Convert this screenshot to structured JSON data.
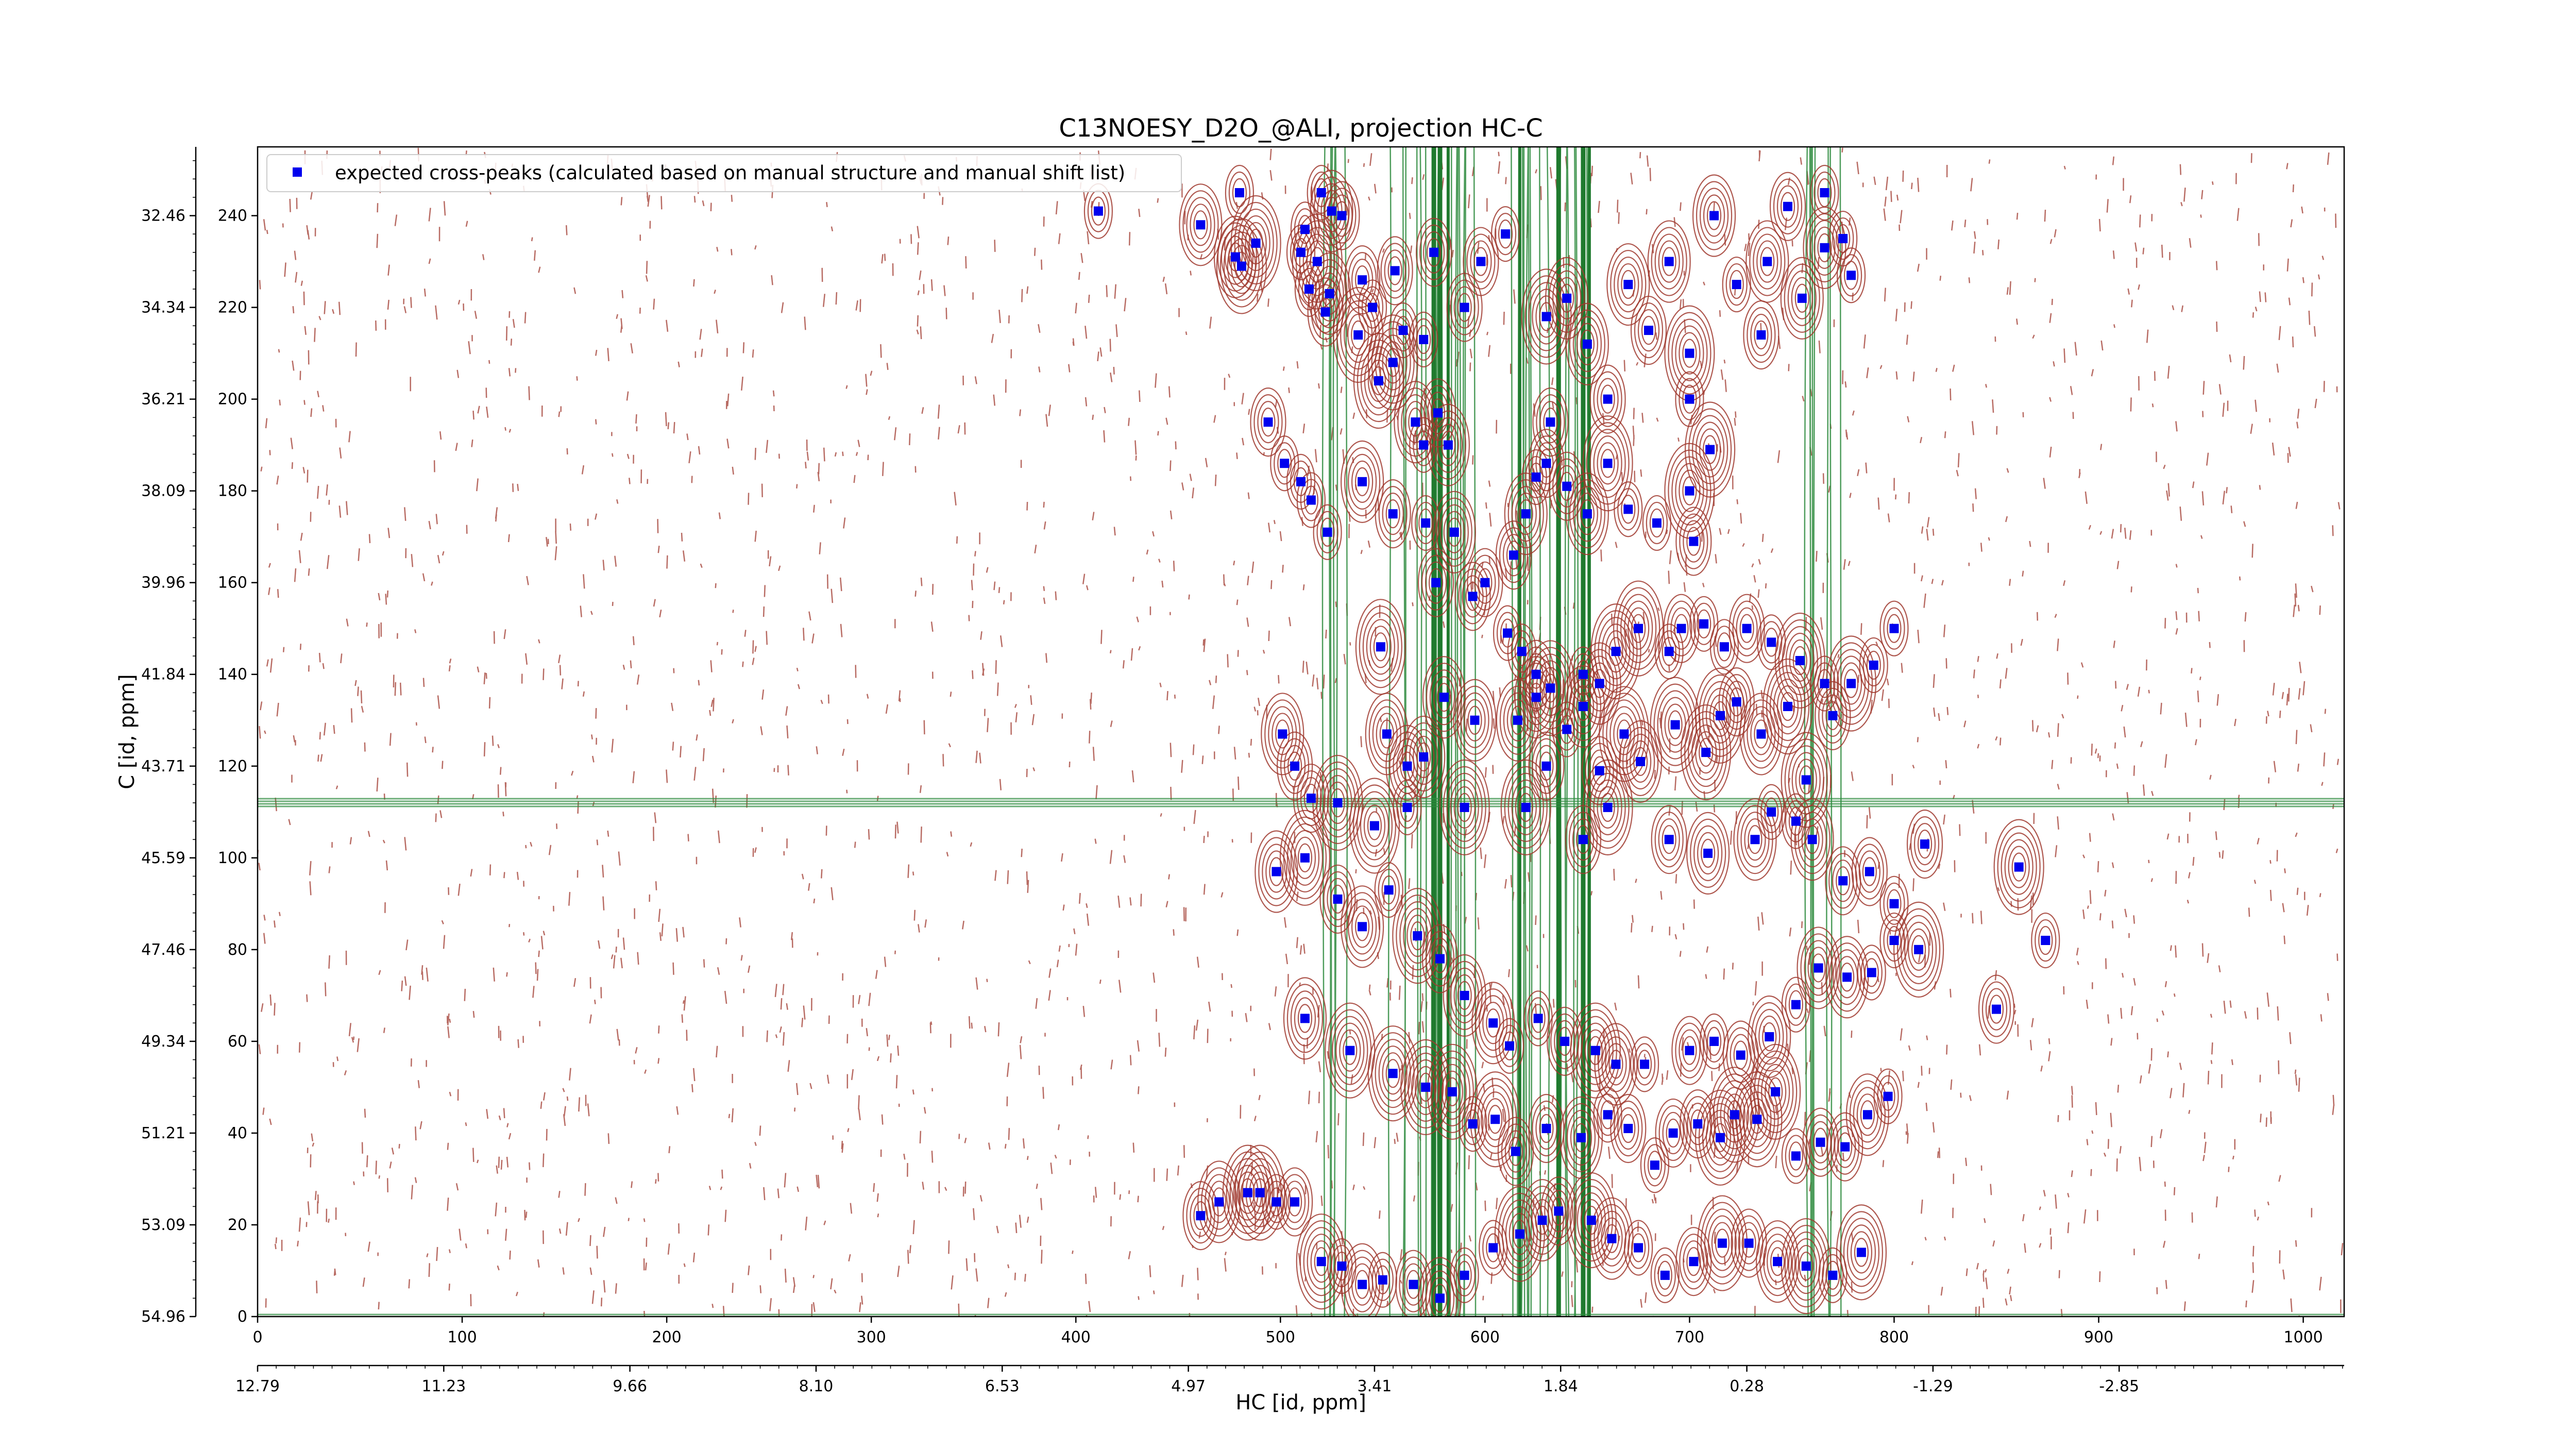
{
  "chart_data": {
    "type": "scatter",
    "title": "C13NOESY_D2O_@ALI, projection HC-C",
    "xlabel": "HC [id, ppm]",
    "ylabel": "C [id, ppm]",
    "xlim": [
      0,
      1020
    ],
    "ylim": [
      0,
      255
    ],
    "x_ticks": [
      0,
      100,
      200,
      300,
      400,
      500,
      600,
      700,
      800,
      900,
      1000
    ],
    "y_ticks": [
      0,
      20,
      40,
      60,
      80,
      100,
      120,
      140,
      160,
      180,
      200,
      220,
      240
    ],
    "x_ppm_ticks": [
      {
        "pos": 0,
        "label": "12.79"
      },
      {
        "pos": 91,
        "label": "11.23"
      },
      {
        "pos": 182,
        "label": "9.66"
      },
      {
        "pos": 273,
        "label": "8.10"
      },
      {
        "pos": 364,
        "label": "6.53"
      },
      {
        "pos": 455,
        "label": "4.97"
      },
      {
        "pos": 546,
        "label": "3.41"
      },
      {
        "pos": 637,
        "label": "1.84"
      },
      {
        "pos": 728,
        "label": "0.28"
      },
      {
        "pos": 819,
        "label": "-1.29"
      },
      {
        "pos": 910,
        "label": "-2.85"
      }
    ],
    "y_ppm_ticks": [
      {
        "pos": 0,
        "label": "54.96"
      },
      {
        "pos": 20,
        "label": "53.09"
      },
      {
        "pos": 40,
        "label": "51.21"
      },
      {
        "pos": 60,
        "label": "49.34"
      },
      {
        "pos": 80,
        "label": "47.46"
      },
      {
        "pos": 100,
        "label": "45.59"
      },
      {
        "pos": 120,
        "label": "43.71"
      },
      {
        "pos": 140,
        "label": "41.84"
      },
      {
        "pos": 160,
        "label": "39.96"
      },
      {
        "pos": 180,
        "label": "38.09"
      },
      {
        "pos": 200,
        "label": "36.21"
      },
      {
        "pos": 220,
        "label": "34.34"
      },
      {
        "pos": 240,
        "label": "32.46"
      }
    ],
    "legend": {
      "position": "top-left",
      "entries": [
        "expected cross-peaks (calculated based on manual structure and manual shift list)"
      ]
    },
    "colors": {
      "positive_contours": "#a0392f",
      "negative_contours": "#2e8b3e",
      "peaks": "#0000ee"
    },
    "series": [
      {
        "name": "expected cross-peaks (calculated based on manual structure and manual shift list)",
        "points": [
          [
            411,
            241
          ],
          [
            461,
            238
          ],
          [
            480,
            245
          ],
          [
            488,
            234
          ],
          [
            478,
            231
          ],
          [
            481,
            229
          ],
          [
            510,
            232
          ],
          [
            518,
            230
          ],
          [
            514,
            224
          ],
          [
            522,
            219
          ],
          [
            540,
            226
          ],
          [
            545,
            220
          ],
          [
            556,
            228
          ],
          [
            560,
            215
          ],
          [
            570,
            213
          ],
          [
            575,
            232
          ],
          [
            590,
            220
          ],
          [
            598,
            230
          ],
          [
            610,
            236
          ],
          [
            630,
            218
          ],
          [
            640,
            222
          ],
          [
            650,
            212
          ],
          [
            660,
            200
          ],
          [
            670,
            225
          ],
          [
            680,
            215
          ],
          [
            690,
            230
          ],
          [
            700,
            210
          ],
          [
            700,
            200
          ],
          [
            712,
            240
          ],
          [
            723,
            225
          ],
          [
            738,
            230
          ],
          [
            748,
            242
          ],
          [
            766,
            245
          ],
          [
            766,
            233
          ],
          [
            775,
            235
          ],
          [
            779,
            227
          ],
          [
            755,
            222
          ],
          [
            735,
            214
          ],
          [
            512,
            237
          ],
          [
            520,
            245
          ],
          [
            524,
            223
          ],
          [
            525,
            241
          ],
          [
            530,
            240
          ],
          [
            538,
            214
          ],
          [
            548,
            204
          ],
          [
            555,
            208
          ],
          [
            566,
            195
          ],
          [
            570,
            190
          ],
          [
            577,
            197
          ],
          [
            582,
            190
          ],
          [
            585,
            171
          ],
          [
            600,
            160
          ],
          [
            614,
            166
          ],
          [
            620,
            175
          ],
          [
            625,
            183
          ],
          [
            630,
            186
          ],
          [
            632,
            195
          ],
          [
            640,
            181
          ],
          [
            650,
            175
          ],
          [
            660,
            186
          ],
          [
            670,
            176
          ],
          [
            684,
            173
          ],
          [
            700,
            180
          ],
          [
            702,
            169
          ],
          [
            710,
            189
          ],
          [
            494,
            195
          ],
          [
            502,
            186
          ],
          [
            510,
            182
          ],
          [
            515,
            178
          ],
          [
            523,
            171
          ],
          [
            540,
            182
          ],
          [
            555,
            175
          ],
          [
            571,
            173
          ],
          [
            576,
            160
          ],
          [
            594,
            157
          ],
          [
            611,
            149
          ],
          [
            618,
            145
          ],
          [
            625,
            140
          ],
          [
            632,
            137
          ],
          [
            648,
            140
          ],
          [
            656,
            138
          ],
          [
            664,
            145
          ],
          [
            675,
            150
          ],
          [
            690,
            145
          ],
          [
            696,
            150
          ],
          [
            707,
            151
          ],
          [
            717,
            146
          ],
          [
            728,
            150
          ],
          [
            740,
            147
          ],
          [
            754,
            143
          ],
          [
            766,
            138
          ],
          [
            779,
            138
          ],
          [
            790,
            142
          ],
          [
            800,
            150
          ],
          [
            549,
            146
          ],
          [
            552,
            127
          ],
          [
            562,
            120
          ],
          [
            570,
            122
          ],
          [
            580,
            135
          ],
          [
            595,
            130
          ],
          [
            616,
            130
          ],
          [
            625,
            135
          ],
          [
            640,
            128
          ],
          [
            648,
            133
          ],
          [
            656,
            119
          ],
          [
            668,
            127
          ],
          [
            676,
            121
          ],
          [
            693,
            129
          ],
          [
            708,
            123
          ],
          [
            715,
            131
          ],
          [
            723,
            134
          ],
          [
            735,
            127
          ],
          [
            748,
            133
          ],
          [
            757,
            117
          ],
          [
            770,
            131
          ],
          [
            501,
            127
          ],
          [
            507,
            120
          ],
          [
            515,
            113
          ],
          [
            528,
            112
          ],
          [
            546,
            107
          ],
          [
            562,
            111
          ],
          [
            590,
            111
          ],
          [
            620,
            111
          ],
          [
            630,
            120
          ],
          [
            648,
            104
          ],
          [
            660,
            111
          ],
          [
            690,
            104
          ],
          [
            709,
            101
          ],
          [
            732,
            104
          ],
          [
            740,
            110
          ],
          [
            752,
            108
          ],
          [
            760,
            104
          ],
          [
            775,
            95
          ],
          [
            788,
            97
          ],
          [
            800,
            90
          ],
          [
            815,
            103
          ],
          [
            861,
            98
          ],
          [
            874,
            82
          ],
          [
            498,
            97
          ],
          [
            512,
            100
          ],
          [
            528,
            91
          ],
          [
            540,
            85
          ],
          [
            553,
            93
          ],
          [
            567,
            83
          ],
          [
            578,
            78
          ],
          [
            590,
            70
          ],
          [
            604,
            64
          ],
          [
            612,
            59
          ],
          [
            626,
            65
          ],
          [
            639,
            60
          ],
          [
            654,
            58
          ],
          [
            664,
            55
          ],
          [
            678,
            55
          ],
          [
            700,
            58
          ],
          [
            712,
            60
          ],
          [
            725,
            57
          ],
          [
            739,
            61
          ],
          [
            752,
            68
          ],
          [
            763,
            76
          ],
          [
            777,
            74
          ],
          [
            789,
            75
          ],
          [
            800,
            82
          ],
          [
            812,
            80
          ],
          [
            850,
            67
          ],
          [
            512,
            65
          ],
          [
            534,
            58
          ],
          [
            555,
            53
          ],
          [
            571,
            50
          ],
          [
            584,
            49
          ],
          [
            594,
            42
          ],
          [
            605,
            43
          ],
          [
            615,
            36
          ],
          [
            630,
            41
          ],
          [
            647,
            39
          ],
          [
            660,
            44
          ],
          [
            670,
            41
          ],
          [
            683,
            33
          ],
          [
            692,
            40
          ],
          [
            704,
            42
          ],
          [
            715,
            39
          ],
          [
            722,
            44
          ],
          [
            733,
            43
          ],
          [
            742,
            49
          ],
          [
            752,
            35
          ],
          [
            764,
            38
          ],
          [
            776,
            37
          ],
          [
            787,
            44
          ],
          [
            797,
            48
          ],
          [
            461,
            22
          ],
          [
            470,
            25
          ],
          [
            484,
            27
          ],
          [
            490,
            27
          ],
          [
            498,
            25
          ],
          [
            507,
            25
          ],
          [
            520,
            12
          ],
          [
            530,
            11
          ],
          [
            540,
            7
          ],
          [
            550,
            8
          ],
          [
            565,
            7
          ],
          [
            578,
            4
          ],
          [
            590,
            9
          ],
          [
            604,
            15
          ],
          [
            617,
            18
          ],
          [
            628,
            21
          ],
          [
            636,
            23
          ],
          [
            652,
            21
          ],
          [
            662,
            17
          ],
          [
            675,
            15
          ],
          [
            688,
            9
          ],
          [
            702,
            12
          ],
          [
            716,
            16
          ],
          [
            729,
            16
          ],
          [
            743,
            12
          ],
          [
            757,
            11
          ],
          [
            770,
            9
          ],
          [
            784,
            14
          ]
        ]
      }
    ]
  }
}
